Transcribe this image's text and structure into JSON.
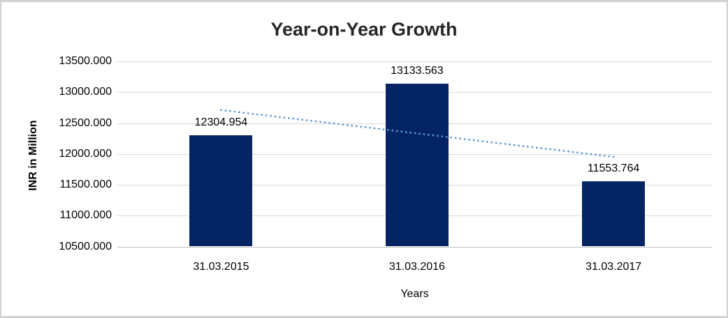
{
  "window": {
    "background": "#ffffff",
    "border_color": "#d2d2d2"
  },
  "chart_data": {
    "type": "bar",
    "title": "Year-on-Year Growth",
    "xlabel": "Years",
    "ylabel": "INR in Million",
    "categories": [
      "31.03.2015",
      "31.03.2016",
      "31.03.2017"
    ],
    "values": [
      12304.954,
      13133.563,
      11553.764
    ],
    "data_labels": [
      "12304.954",
      "13133.563",
      "11553.764"
    ],
    "ylim": [
      10500,
      13500
    ],
    "ytick_step": 500,
    "ytick_labels": [
      "13500.000",
      "13000.000",
      "12500.000",
      "12000.000",
      "11500.000",
      "11000.000",
      "10500.000"
    ],
    "grid": true,
    "legend": "none",
    "bar_color": "#042463",
    "gridline_color": "#d9d9d9",
    "trendline": {
      "style": "dotted",
      "color": "#5b9bd5",
      "start_value": 12711,
      "end_value": 11953
    }
  }
}
